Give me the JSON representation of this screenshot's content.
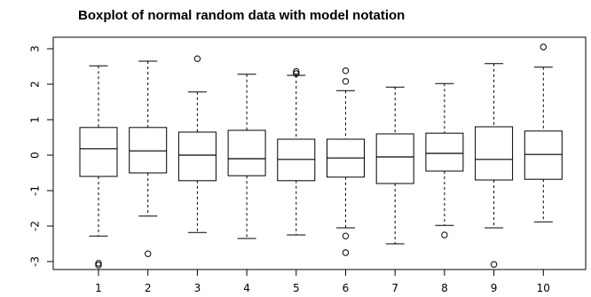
{
  "chart_data": {
    "type": "boxplot",
    "title": "Boxplot of normal random data with model notation",
    "xlabel": "",
    "ylabel": "",
    "categories": [
      "1",
      "2",
      "3",
      "4",
      "5",
      "6",
      "7",
      "8",
      "9",
      "10"
    ],
    "yticks": [
      "-3",
      "-2",
      "-1",
      "0",
      "1",
      "2",
      "3"
    ],
    "ylim": [
      -3.3,
      3.3
    ],
    "grid": false,
    "boxes": [
      {
        "label": "1",
        "whisker_low": -2.28,
        "q1": -0.6,
        "median": 0.18,
        "q3": 0.78,
        "whisker_high": 2.52,
        "outliers": [
          -3.05,
          -3.1
        ]
      },
      {
        "label": "2",
        "whisker_low": -1.72,
        "q1": -0.5,
        "median": 0.12,
        "q3": 0.78,
        "whisker_high": 2.65,
        "outliers": [
          -2.78
        ]
      },
      {
        "label": "3",
        "whisker_low": -2.18,
        "q1": -0.72,
        "median": 0.0,
        "q3": 0.65,
        "whisker_high": 1.78,
        "outliers": [
          2.72
        ]
      },
      {
        "label": "4",
        "whisker_low": -2.35,
        "q1": -0.58,
        "median": -0.1,
        "q3": 0.7,
        "whisker_high": 2.28,
        "outliers": []
      },
      {
        "label": "5",
        "whisker_low": -2.25,
        "q1": -0.72,
        "median": -0.12,
        "q3": 0.45,
        "whisker_high": 2.25,
        "outliers": [
          2.3,
          2.36
        ]
      },
      {
        "label": "6",
        "whisker_low": -2.05,
        "q1": -0.62,
        "median": -0.08,
        "q3": 0.45,
        "whisker_high": 1.82,
        "outliers": [
          2.08,
          2.38,
          -2.28,
          -2.75
        ]
      },
      {
        "label": "7",
        "whisker_low": -2.5,
        "q1": -0.8,
        "median": -0.05,
        "q3": 0.6,
        "whisker_high": 1.92,
        "outliers": []
      },
      {
        "label": "8",
        "whisker_low": -1.98,
        "q1": -0.45,
        "median": 0.05,
        "q3": 0.62,
        "whisker_high": 2.02,
        "outliers": [
          -2.25
        ]
      },
      {
        "label": "9",
        "whisker_low": -2.05,
        "q1": -0.7,
        "median": -0.12,
        "q3": 0.8,
        "whisker_high": 2.58,
        "outliers": [
          -3.08
        ]
      },
      {
        "label": "10",
        "whisker_low": -1.88,
        "q1": -0.68,
        "median": 0.02,
        "q3": 0.68,
        "whisker_high": 2.48,
        "outliers": [
          3.05
        ]
      }
    ],
    "colors": {
      "box_fill": "#ffffff",
      "stroke": "#000000"
    }
  }
}
